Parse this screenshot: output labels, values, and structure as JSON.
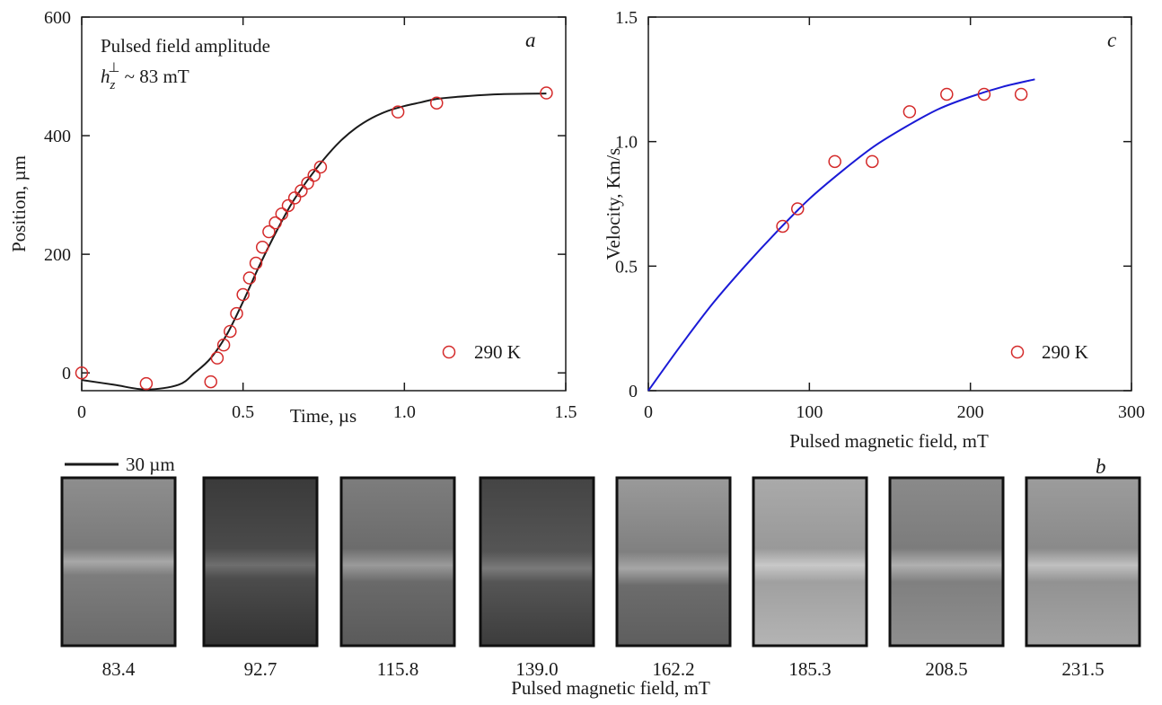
{
  "colors": {
    "marker": "#d42a2a",
    "curve_a": "#1a1a1a",
    "curve_c": "#1a1ad6",
    "axis": "#1a1a1a"
  },
  "chart_data": [
    {
      "panel": "a",
      "type": "scatter",
      "xlabel": "Time, µs",
      "ylabel": "Position, µm",
      "xlim": [
        0,
        1.5
      ],
      "ylim": [
        -30,
        600
      ],
      "xticks": [
        "0",
        "0.5",
        "1.0",
        "1.5"
      ],
      "yticks": [
        "0",
        "200",
        "400",
        "600"
      ],
      "annotation_line1": "Pulsed field amplitude",
      "annotation_h": "h",
      "annotation_sub": "z",
      "annotation_sup": "⊥",
      "annotation_rest": " ~ 83 mT",
      "legend": "290 K",
      "series": [
        {
          "name": "290 K",
          "x": [
            0.0,
            0.2,
            0.4,
            0.42,
            0.44,
            0.46,
            0.48,
            0.5,
            0.52,
            0.54,
            0.56,
            0.58,
            0.6,
            0.62,
            0.64,
            0.66,
            0.68,
            0.7,
            0.72,
            0.74,
            0.98,
            1.1,
            1.44
          ],
          "y": [
            0,
            -18,
            -15,
            25,
            47,
            70,
            100,
            132,
            160,
            185,
            212,
            238,
            253,
            268,
            282,
            295,
            307,
            320,
            333,
            347,
            440,
            455,
            472
          ]
        }
      ],
      "fit": {
        "x": [
          0.0,
          0.1,
          0.2,
          0.3,
          0.35,
          0.4,
          0.45,
          0.5,
          0.55,
          0.6,
          0.65,
          0.7,
          0.75,
          0.8,
          0.85,
          0.9,
          0.95,
          1.0,
          1.05,
          1.1,
          1.2,
          1.3,
          1.44
        ],
        "y": [
          -12,
          -20,
          -28,
          -20,
          0,
          25,
          65,
          120,
          180,
          235,
          285,
          325,
          360,
          390,
          413,
          430,
          442,
          450,
          456,
          462,
          467,
          470,
          471
        ]
      }
    },
    {
      "panel": "c",
      "type": "scatter",
      "xlabel": "Pulsed magnetic field, mT",
      "ylabel": "Velocity, Km/s",
      "xlim": [
        0,
        300
      ],
      "ylim": [
        0,
        1.5
      ],
      "xticks": [
        "0",
        "100",
        "200",
        "300"
      ],
      "yticks": [
        "0",
        "0.5",
        "1.0",
        "1.5"
      ],
      "legend": "290 K",
      "series": [
        {
          "name": "290 K",
          "x": [
            83.4,
            92.7,
            115.8,
            139.0,
            162.2,
            185.3,
            208.5,
            231.5
          ],
          "y": [
            0.66,
            0.73,
            0.92,
            0.92,
            1.12,
            1.19,
            1.19,
            1.19
          ]
        }
      ],
      "fit": {
        "x": [
          0,
          20,
          40,
          60,
          80,
          100,
          120,
          140,
          160,
          180,
          200,
          220,
          240
        ],
        "y": [
          0,
          0.18,
          0.35,
          0.5,
          0.64,
          0.77,
          0.88,
          0.98,
          1.06,
          1.13,
          1.18,
          1.22,
          1.25
        ]
      }
    }
  ],
  "panel_b": {
    "label": "b",
    "scalebar": "30 µm",
    "xlabel": "Pulsed magnetic field, mT",
    "frames": [
      "83.4",
      "92.7",
      "115.8",
      "139.0",
      "162.2",
      "185.3",
      "208.5",
      "231.5"
    ]
  }
}
